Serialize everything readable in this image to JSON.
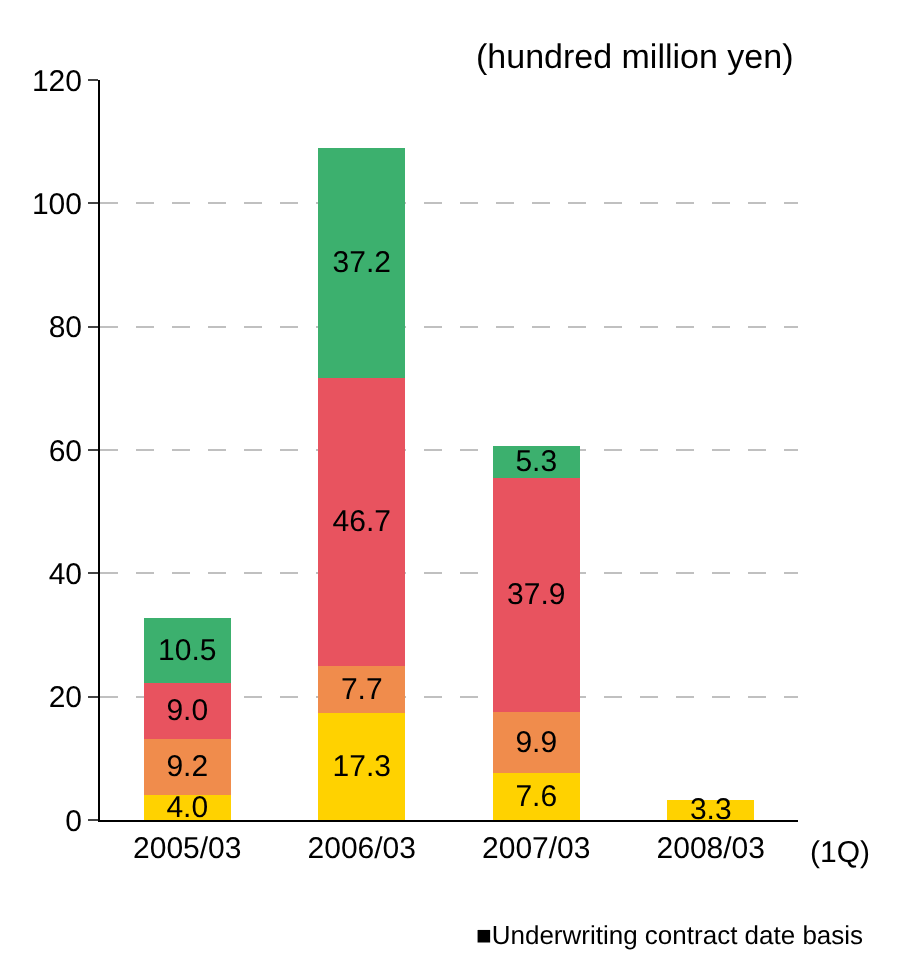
{
  "chart_data": {
    "type": "bar",
    "stacked": true,
    "ylabel": "(hundred million yen)",
    "categories": [
      "2005/03",
      "2006/03",
      "2007/03",
      "2008/03"
    ],
    "series": [
      {
        "color": "#ffd200",
        "values": [
          4.0,
          17.3,
          7.6,
          3.3
        ],
        "value_labels": [
          "4.0",
          "17.3",
          "7.6",
          "3.3"
        ]
      },
      {
        "color": "#f08c4c",
        "values": [
          9.2,
          7.7,
          9.9,
          null
        ],
        "value_labels": [
          "9.2",
          "7.7",
          "9.9",
          null
        ]
      },
      {
        "color": "#e8535f",
        "values": [
          9.0,
          46.7,
          37.9,
          null
        ],
        "value_labels": [
          "9.0",
          "46.7",
          "37.9",
          null
        ]
      },
      {
        "color": "#3cb06e",
        "values": [
          10.5,
          37.2,
          5.3,
          null
        ],
        "value_labels": [
          "10.5",
          "37.2",
          "5.3",
          null
        ]
      }
    ],
    "ylim": [
      0,
      120
    ],
    "yticks": [
      0,
      20,
      40,
      60,
      80,
      100,
      120
    ],
    "grid": "y",
    "legend": false,
    "annotations": [
      "(1Q)",
      "■Underwriting contract date basis"
    ]
  }
}
